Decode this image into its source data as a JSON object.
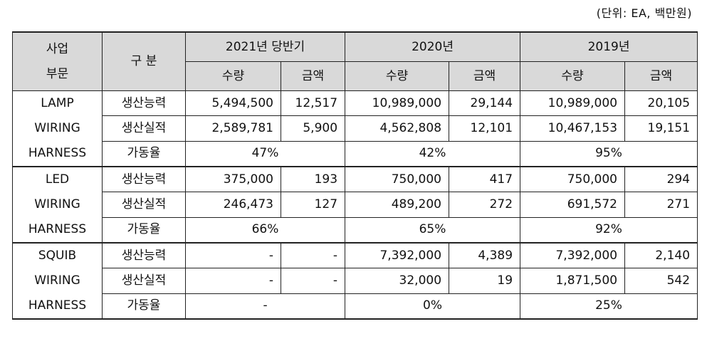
{
  "unit_note": "(단위: EA, 백만원)",
  "header": {
    "segment": [
      "사업",
      "부문"
    ],
    "division": "구 분",
    "periods": [
      "2021년 당반기",
      "2020년",
      "2019년"
    ],
    "qty": "수량",
    "amount": "금액"
  },
  "groups": [
    {
      "name": [
        "LAMP",
        "WIRING",
        "HARNESS"
      ],
      "capacity": {
        "label": "생산능력",
        "values": [
          "5,494,500",
          "12,517",
          "10,989,000",
          "29,144",
          "10,989,000",
          "20,105"
        ]
      },
      "output": {
        "label": "생산실적",
        "values": [
          "2,589,781",
          "5,900",
          "4,562,808",
          "12,101",
          "10,467,153",
          "19,151"
        ]
      },
      "utilization": {
        "label": "가동율",
        "values": [
          "47%",
          "42%",
          "95%"
        ]
      }
    },
    {
      "name": [
        "LED",
        "WIRING",
        "HARNESS"
      ],
      "capacity": {
        "label": "생산능력",
        "values": [
          "375,000",
          "193",
          "750,000",
          "417",
          "750,000",
          "294"
        ]
      },
      "output": {
        "label": "생산실적",
        "values": [
          "246,473",
          "127",
          "489,200",
          "272",
          "691,572",
          "271"
        ]
      },
      "utilization": {
        "label": "가동율",
        "values": [
          "66%",
          "65%",
          "92%"
        ]
      }
    },
    {
      "name": [
        "SQUIB",
        "WIRING",
        "HARNESS"
      ],
      "capacity": {
        "label": "생산능력",
        "values": [
          "-",
          "-",
          "7,392,000",
          "4,389",
          "7,392,000",
          "2,140"
        ]
      },
      "output": {
        "label": "생산실적",
        "values": [
          "-",
          "-",
          "32,000",
          "19",
          "1,871,500",
          "542"
        ]
      },
      "utilization": {
        "label": "가동율",
        "values": [
          "-",
          "0%",
          "25%"
        ]
      }
    }
  ]
}
